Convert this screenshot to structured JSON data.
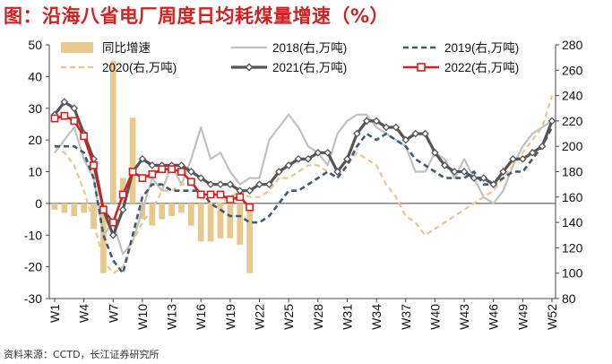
{
  "title": "图：沿海八省电厂周度日均耗煤量增速（%）",
  "source": "资料来源：CCTD，长江证券研究所",
  "chart_data": {
    "type": "bar+line",
    "left_axis": {
      "min": -30,
      "max": 50,
      "ticks": [
        50,
        40,
        30,
        20,
        10,
        0,
        -10,
        -20,
        -30
      ]
    },
    "right_axis": {
      "min": 80,
      "max": 280,
      "ticks": [
        280,
        260,
        240,
        220,
        200,
        180,
        160,
        140,
        120,
        100,
        80
      ]
    },
    "x_ticks": [
      "W1",
      "W4",
      "W7",
      "W10",
      "W13",
      "W16",
      "W19",
      "W22",
      "W25",
      "W28",
      "W31",
      "W34",
      "W37",
      "W40",
      "W43",
      "W46",
      "W49",
      "W52"
    ],
    "weeks": 52,
    "bars": {
      "name": "同比增速",
      "axis": "left",
      "color": "#e8c98d",
      "values": [
        -2,
        -3,
        -4,
        -3,
        -8,
        -22,
        45,
        8,
        27,
        -5,
        -7,
        -5,
        -4,
        -3,
        -7,
        -12,
        -12,
        -11,
        -11,
        -13,
        -22
      ]
    },
    "series": [
      {
        "name": "2018(右,万吨)",
        "style": "solid-light",
        "color": "#c0c0c0",
        "values": [
          195,
          205,
          215,
          190,
          175,
          130,
          140,
          115,
          125,
          150,
          175,
          165,
          185,
          170,
          190,
          215,
          190,
          195,
          180,
          170,
          175,
          175,
          205,
          215,
          225,
          215,
          200,
          195,
          185,
          210,
          220,
          225,
          225,
          215,
          210,
          205,
          200,
          180,
          180,
          195,
          190,
          175,
          190,
          175,
          160,
          155,
          165,
          185,
          200,
          210,
          215,
          220
        ]
      },
      {
        "name": "2019(右,万吨)",
        "style": "dashed-dark",
        "color": "#3f5b6e",
        "values": [
          200,
          200,
          200,
          195,
          175,
          130,
          110,
          100,
          130,
          160,
          170,
          170,
          165,
          165,
          165,
          165,
          155,
          150,
          145,
          145,
          140,
          140,
          145,
          155,
          165,
          165,
          170,
          175,
          180,
          175,
          185,
          200,
          210,
          205,
          210,
          205,
          200,
          190,
          185,
          180,
          175,
          175,
          175,
          180,
          170,
          170,
          175,
          180,
          180,
          190,
          200,
          215
        ]
      },
      {
        "name": "2020(右,万吨)",
        "style": "dashed-light",
        "color": "#e9c58e",
        "values": [
          200,
          195,
          185,
          165,
          140,
          110,
          100,
          105,
          125,
          140,
          150,
          165,
          165,
          170,
          170,
          160,
          155,
          155,
          160,
          165,
          160,
          160,
          165,
          175,
          175,
          180,
          185,
          185,
          180,
          175,
          185,
          195,
          190,
          185,
          170,
          160,
          145,
          140,
          130,
          135,
          140,
          145,
          150,
          155,
          160,
          165,
          175,
          185,
          195,
          205,
          215,
          240
        ]
      },
      {
        "name": "2021(右,万吨)",
        "style": "solid-marker-diamond",
        "color": "#555555",
        "values": [
          225,
          235,
          230,
          210,
          190,
          150,
          130,
          150,
          180,
          190,
          185,
          185,
          185,
          185,
          180,
          175,
          170,
          170,
          170,
          165,
          165,
          170,
          170,
          180,
          185,
          190,
          190,
          195,
          195,
          180,
          190,
          210,
          220,
          220,
          215,
          215,
          205,
          210,
          210,
          195,
          185,
          180,
          180,
          175,
          175,
          170,
          180,
          190,
          190,
          195,
          200,
          220
        ]
      },
      {
        "name": "2022(右,万吨)",
        "style": "solid-marker-square",
        "color": "#d42020",
        "values": [
          222,
          224,
          220,
          208,
          185,
          150,
          140,
          162,
          180,
          175,
          178,
          182,
          182,
          180,
          172,
          162,
          162,
          162,
          158,
          160,
          152
        ]
      }
    ]
  }
}
